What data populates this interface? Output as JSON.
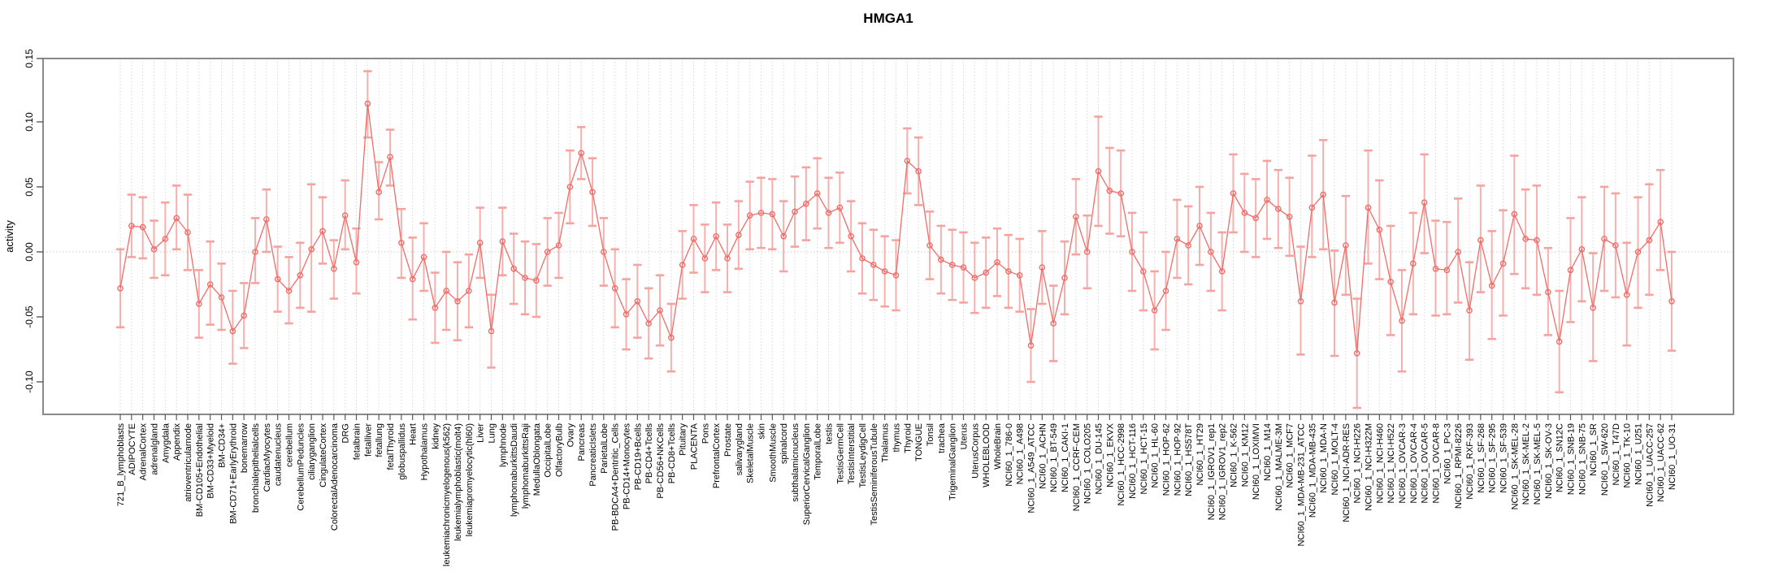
{
  "chart_data": {
    "type": "line",
    "title": "HMGA1",
    "ylabel": "activity",
    "xlabel": "",
    "legend": "none",
    "grid": "vertical dotted line per category; dotted horizontal line at 0",
    "marker": "open-circle",
    "error_bars": true,
    "ylim": [
      -0.125,
      0.149
    ],
    "y_ticks": [
      0.15,
      0.1,
      0.05,
      0.0,
      -0.05,
      -0.1
    ],
    "y_tick_labels": [
      "0.15",
      "0.10",
      "0.05",
      "0.00",
      "-0.05",
      "-0.10"
    ],
    "colors": {
      "series": "#f16c68",
      "error_bar": "#f6a3a0",
      "grid": "#d9d9d9",
      "zero_line": "#cfcfcf",
      "plot_border": "#8a8a8a",
      "tick": "#5a5a5a",
      "text": "#000000",
      "background": "#ffffff"
    },
    "categories": [
      "721_B_lymphoblasts",
      "ADIPOCYTE",
      "AdrenalCortex",
      "adrenalgland",
      "Amygdala",
      "Appendix",
      "atrioventricularnode",
      "BM-CD105+Endothelial",
      "BM-CD33+Myeloid",
      "BM-CD34+",
      "BM-CD71+EarlyErythroid",
      "bonemarrow",
      "bronchialepithelialcells",
      "CardiacMyocytes",
      "caudatenucleus",
      "cerebellum",
      "CerebellumPeduncles",
      "ciliaryganglion",
      "CingulateCortex",
      "ColorectalAdenocarcinoma",
      "DRG",
      "fetalbrain",
      "fetalliver",
      "fetallung",
      "fetalThyroid",
      "globuspallidus",
      "Heart",
      "Hypothalamus",
      "kidney",
      "leukemiachronicmyelogenous(k562)",
      "leukemialymphoblastic(molt4)",
      "leukemiapromyelocytic(hl60)",
      "Liver",
      "Lung",
      "lymphnode",
      "lymphomaburkittsDaudi",
      "lymphomaburkittsRaji",
      "MedullaOblongata",
      "OccipitalLobe",
      "OlfactoryBulb",
      "Ovary",
      "Pancreas",
      "PancreaticIslets",
      "ParietalLobe",
      "PB-BDCA4+Dentritic_Cells",
      "PB-CD14+Monocytes",
      "PB-CD19+Bcells",
      "PB-CD4+Tcells",
      "PB-CD56+NKCells",
      "PB-CD8+Tcells",
      "Pituitary",
      "PLACENTA",
      "Pons",
      "PrefrontalCortex",
      "Prostate",
      "salivarygland",
      "SkeletalMuscle",
      "skin",
      "SmoothMuscle",
      "spinalcord",
      "subthalamicnucleus",
      "SuperiorCervicalGanglion",
      "TemporalLobe",
      "testis",
      "TestisGermCell",
      "TestisInterstitial",
      "TestisLeydigCell",
      "TestisSeminiferousTubule",
      "Thalamus",
      "thymus",
      "Thyroid",
      "TONGUE",
      "Tonsil",
      "trachea",
      "TrigeminalGanglion",
      "Uterus",
      "UterusCorpus",
      "WHOLEBLOOD",
      "WholeBrain",
      "NCI60_1_786-0",
      "NCI60_1_A498",
      "NCI60_1_A549_ATCC",
      "NCI60_1_ACHN",
      "NCI60_1_BT-549",
      "NCI60_1_CAKI-1",
      "NCI60_1_CCRF-CEM",
      "NCI60_1_COLO205",
      "NCI60_1_DU-145",
      "NCI60_1_EKVX",
      "NCI60_1_HCC-2998",
      "NCI60_1_HCT-116",
      "NCI60_1_HCT-15",
      "NCI60_1_HL-60",
      "NCI60_1_HOP-62",
      "NCI60_1_HOP-92",
      "NCI60_1_HS578T",
      "NCI60_1_HT29",
      "NCI60_1_IGROV1_rep1",
      "NCI60_1_IGROV1_rep2",
      "NCI60_1_K-562",
      "NCI60_1_KM12",
      "NCI60_1_LOXIMVI",
      "NCI60_1_M14",
      "NCI60_1_MALME-3M",
      "NCI60_1_MCF7",
      "NCI60_1_MDA-MB-231_ATCC",
      "NCI60_1_MDA-MB-435",
      "NCI60_1_MDA-N",
      "NCI60_1_MOLT-4",
      "NCI60_1_NCI-ADR-RES",
      "NCI60_1_NCI-H226",
      "NCI60_1_NCI-H322M",
      "NCI60_1_NCI-H460",
      "NCI60_1_NCI-H522",
      "NCI60_1_OVCAR-3",
      "NCI60_1_OVCAR-4",
      "NCI60_1_OVCAR-5",
      "NCI60_1_OVCAR-8",
      "NCI60_1_PC-3",
      "NCI60_1_RPMI-8226",
      "NCI60_1_RXF-393",
      "NCI60_1_SF-268",
      "NCI60_1_SF-295",
      "NCI60_1_SF-539",
      "NCI60_1_SK-MEL-28",
      "NCI60_1_SK-MEL-2",
      "NCI60_1_SK-MEL-5",
      "NCI60_1_SK-OV-3",
      "NCI60_1_SN12C",
      "NCI60_1_SNB-19",
      "NCI60_1_SNB-75",
      "NCI60_1_SR",
      "NCI60_1_SW-620",
      "NCI60_1_T47D",
      "NCI60_1_TK-10",
      "NCI60_1_U251",
      "NCI60_1_UACC-257",
      "NCI60_1_UACC-62",
      "NCI60_1_UO-31"
    ],
    "values": [
      -0.028,
      0.02,
      0.019,
      0.002,
      0.01,
      0.026,
      0.015,
      -0.04,
      -0.025,
      -0.035,
      -0.061,
      -0.049,
      0.0,
      0.025,
      -0.021,
      -0.03,
      -0.018,
      0.002,
      0.016,
      -0.013,
      0.028,
      -0.008,
      0.114,
      0.046,
      0.073,
      0.007,
      -0.021,
      -0.004,
      -0.043,
      -0.03,
      -0.038,
      -0.03,
      0.007,
      -0.061,
      0.008,
      -0.013,
      -0.02,
      -0.022,
      0.0,
      0.005,
      0.05,
      0.076,
      0.046,
      0.0,
      -0.028,
      -0.048,
      -0.038,
      -0.055,
      -0.045,
      -0.066,
      -0.01,
      0.01,
      -0.005,
      0.012,
      -0.005,
      0.013,
      0.028,
      0.03,
      0.029,
      0.012,
      0.031,
      0.037,
      0.045,
      0.03,
      0.034,
      0.012,
      -0.005,
      -0.01,
      -0.015,
      -0.018,
      0.07,
      0.062,
      0.005,
      -0.006,
      -0.01,
      -0.012,
      -0.02,
      -0.016,
      -0.008,
      -0.015,
      -0.018,
      -0.072,
      -0.012,
      -0.055,
      -0.02,
      0.027,
      0.0,
      0.062,
      0.047,
      0.045,
      0.0,
      -0.015,
      -0.045,
      -0.03,
      0.01,
      0.005,
      0.02,
      0.0,
      -0.015,
      0.045,
      0.03,
      0.026,
      0.04,
      0.033,
      0.027,
      -0.038,
      0.034,
      0.044,
      -0.039,
      0.005,
      -0.078,
      0.034,
      0.017,
      -0.023,
      -0.053,
      -0.009,
      0.038,
      -0.013,
      -0.014,
      0.0,
      -0.045,
      0.009,
      -0.026,
      -0.009,
      0.029,
      0.01,
      0.009,
      -0.031,
      -0.069,
      -0.014,
      0.002,
      -0.043,
      0.01,
      0.005,
      -0.033,
      0.0,
      0.009,
      0.023,
      -0.038
    ],
    "error_low": [
      -0.058,
      -0.004,
      -0.005,
      -0.02,
      -0.018,
      0.002,
      -0.014,
      -0.066,
      -0.056,
      -0.06,
      -0.086,
      -0.074,
      -0.024,
      0.0,
      -0.046,
      -0.055,
      -0.043,
      -0.046,
      -0.009,
      -0.036,
      0.002,
      -0.032,
      0.088,
      0.025,
      0.051,
      -0.02,
      -0.052,
      -0.03,
      -0.07,
      -0.06,
      -0.068,
      -0.058,
      -0.02,
      -0.089,
      -0.018,
      -0.04,
      -0.048,
      -0.05,
      -0.026,
      -0.02,
      0.022,
      0.056,
      0.02,
      -0.026,
      -0.058,
      -0.075,
      -0.066,
      -0.082,
      -0.072,
      -0.092,
      -0.036,
      -0.016,
      -0.031,
      -0.014,
      -0.031,
      -0.013,
      0.002,
      0.003,
      0.002,
      -0.015,
      0.004,
      0.009,
      0.018,
      0.003,
      0.007,
      -0.015,
      -0.032,
      -0.037,
      -0.042,
      -0.045,
      0.045,
      0.036,
      -0.021,
      -0.032,
      -0.037,
      -0.039,
      -0.047,
      -0.043,
      -0.034,
      -0.043,
      -0.046,
      -0.1,
      -0.04,
      -0.084,
      -0.048,
      -0.002,
      -0.028,
      0.02,
      0.014,
      0.012,
      -0.03,
      -0.045,
      -0.075,
      -0.06,
      -0.02,
      -0.025,
      -0.01,
      -0.03,
      -0.045,
      0.015,
      0.0,
      -0.004,
      0.01,
      0.003,
      -0.003,
      -0.079,
      -0.004,
      0.002,
      -0.08,
      -0.033,
      -0.12,
      -0.009,
      -0.021,
      -0.064,
      -0.092,
      -0.048,
      -0.001,
      -0.049,
      -0.048,
      -0.039,
      -0.083,
      -0.031,
      -0.067,
      -0.049,
      -0.017,
      -0.028,
      -0.033,
      -0.064,
      -0.108,
      -0.054,
      -0.038,
      -0.084,
      -0.03,
      -0.035,
      -0.072,
      -0.043,
      -0.033,
      -0.014,
      -0.076
    ],
    "error_high": [
      0.002,
      0.044,
      0.042,
      0.024,
      0.038,
      0.051,
      0.044,
      -0.014,
      0.008,
      -0.009,
      -0.03,
      -0.024,
      0.026,
      0.048,
      0.004,
      -0.004,
      0.007,
      0.052,
      0.042,
      0.009,
      0.055,
      0.018,
      0.139,
      0.069,
      0.094,
      0.033,
      0.011,
      0.022,
      -0.016,
      0.0,
      -0.008,
      -0.002,
      0.034,
      -0.033,
      0.034,
      0.014,
      0.008,
      0.006,
      0.026,
      0.03,
      0.078,
      0.096,
      0.072,
      0.026,
      0.002,
      -0.021,
      -0.01,
      -0.028,
      -0.018,
      -0.04,
      0.016,
      0.036,
      0.021,
      0.038,
      0.021,
      0.039,
      0.054,
      0.057,
      0.056,
      0.039,
      0.058,
      0.065,
      0.072,
      0.057,
      0.061,
      0.039,
      0.022,
      0.017,
      0.012,
      0.009,
      0.095,
      0.088,
      0.031,
      0.02,
      0.017,
      0.015,
      0.007,
      0.011,
      0.018,
      0.013,
      0.01,
      -0.044,
      0.016,
      -0.026,
      0.008,
      0.056,
      0.028,
      0.104,
      0.08,
      0.078,
      0.03,
      0.015,
      -0.015,
      0.0,
      0.04,
      0.035,
      0.05,
      0.03,
      0.015,
      0.075,
      0.06,
      0.056,
      0.07,
      0.063,
      0.057,
      0.004,
      0.074,
      0.086,
      0.001,
      0.043,
      -0.036,
      0.078,
      0.055,
      0.02,
      -0.014,
      0.03,
      0.075,
      0.024,
      0.023,
      0.041,
      -0.008,
      0.051,
      0.016,
      0.032,
      0.074,
      0.048,
      0.051,
      0.003,
      -0.03,
      0.026,
      0.042,
      -0.001,
      0.05,
      0.045,
      0.007,
      0.042,
      0.052,
      0.063,
      0.0
    ]
  }
}
